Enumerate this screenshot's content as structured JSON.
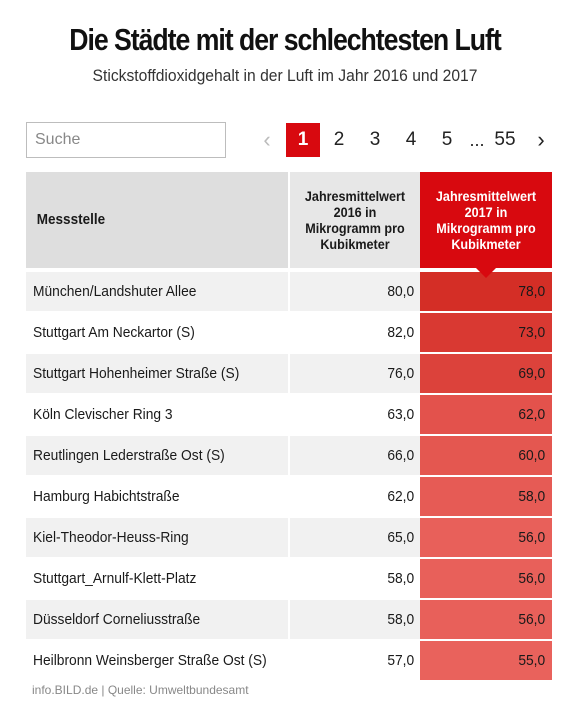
{
  "title": "Die Städte mit der schlechtesten Luft",
  "subtitle": "Stickstoffdioxidgehalt in der Luft im Jahr 2016 und 2017",
  "search": {
    "placeholder": "Suche"
  },
  "pagination": {
    "prev": "‹",
    "pages": [
      "1",
      "2",
      "3",
      "4",
      "5"
    ],
    "ellipsis": "...",
    "last": "55",
    "next": "›",
    "active": "1"
  },
  "table": {
    "headers": {
      "station": "Messstelle",
      "y2016": "Jahresmittelwert 2016 in Mikrogramm pro Kubikmeter",
      "y2017": "Jahresmittelwert 2017 in Mikrogramm pro Kubikmeter"
    },
    "rows": [
      {
        "station": "München/Landshuter Allee",
        "y2016": "80,0",
        "y2017": "78,0"
      },
      {
        "station": "Stuttgart Am Neckartor (S)",
        "y2016": "82,0",
        "y2017": "73,0"
      },
      {
        "station": "Stuttgart Hohenheimer Straße (S)",
        "y2016": "76,0",
        "y2017": "69,0"
      },
      {
        "station": "Köln Clevischer Ring 3",
        "y2016": "63,0",
        "y2017": "62,0"
      },
      {
        "station": "Reutlingen Lederstraße Ost (S)",
        "y2016": "66,0",
        "y2017": "60,0"
      },
      {
        "station": "Hamburg Habichtstraße",
        "y2016": "62,0",
        "y2017": "58,0"
      },
      {
        "station": "Kiel-Theodor-Heuss-Ring",
        "y2016": "65,0",
        "y2017": "56,0"
      },
      {
        "station": "Stuttgart_Arnulf-Klett-Platz",
        "y2016": "58,0",
        "y2017": "56,0"
      },
      {
        "station": "Düsseldorf Corneliusstraße",
        "y2016": "58,0",
        "y2017": "56,0"
      },
      {
        "station": "Heilbronn Weinsberger Straße Ost (S)",
        "y2016": "57,0",
        "y2017": "55,0"
      }
    ]
  },
  "footer": "info.BILD.de | Quelle: Umweltbundesamt",
  "colors": {
    "accent": "#d8090f",
    "heat_high": "#d42e26",
    "heat_low": "#e9625c"
  }
}
